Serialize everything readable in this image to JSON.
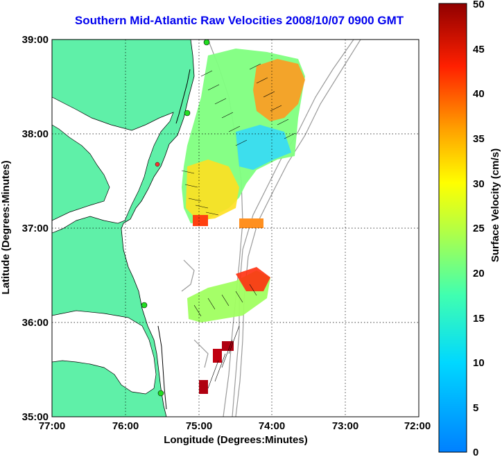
{
  "title": "Southern Mid-Atlantic Raw Velocities 2008/10/07 0900 GMT",
  "map": {
    "xlabel": "Longitude (Degrees:Minutes)",
    "ylabel": "Latitude (Degrees:Minutes)",
    "lon_range": [
      -77,
      -72
    ],
    "lat_range": [
      35,
      39
    ],
    "x_ticks": [
      "77:00",
      "76:00",
      "75:00",
      "74:00",
      "73:00",
      "72:00"
    ],
    "y_ticks": [
      "39:00",
      "38:00",
      "37:00",
      "36:00",
      "35:00"
    ],
    "grid": "dotted",
    "colors": {
      "land": "#5ff0a8",
      "water": "#ffffff",
      "bathymetry": "#999999",
      "site_marker": "#22dd22"
    }
  },
  "colorbar": {
    "label": "Surface Velocity (cm/s)",
    "range": [
      0,
      50
    ],
    "ticks": [
      "50",
      "45",
      "40",
      "35",
      "30",
      "25",
      "20",
      "15",
      "10",
      "5",
      "0"
    ],
    "colormap": "jet"
  }
}
